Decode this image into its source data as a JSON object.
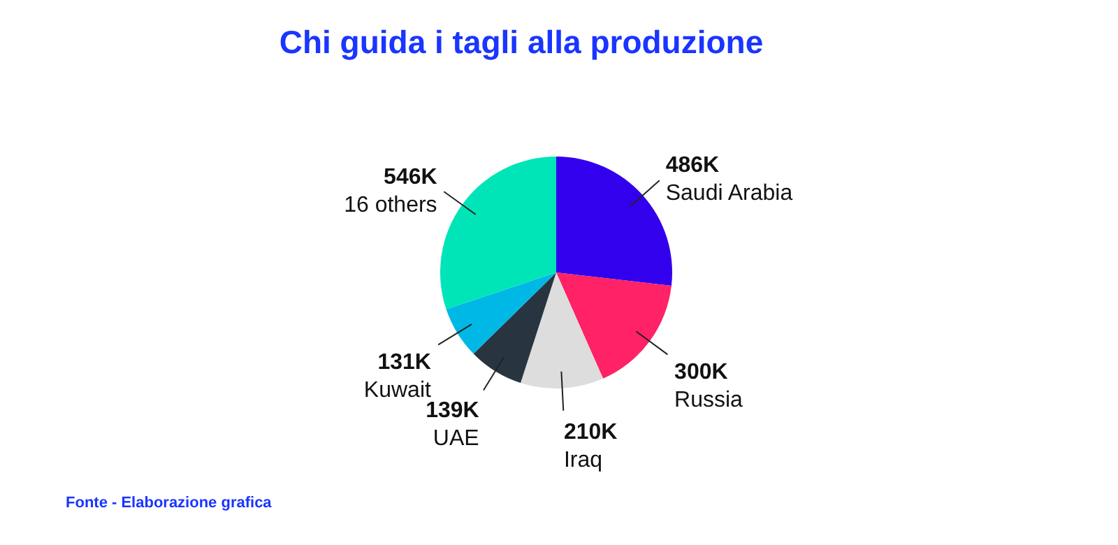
{
  "chart_data": {
    "type": "pie",
    "title": "Chi guida i tagli alla produzione",
    "categories": [
      "Saudi Arabia",
      "Russia",
      "Iraq",
      "UAE",
      "Kuwait",
      "16 others"
    ],
    "values": [
      486,
      300,
      210,
      139,
      131,
      546
    ],
    "value_labels": [
      "486K",
      "300K",
      "210K",
      "139K",
      "131K",
      "546K"
    ],
    "colors": [
      "#3300ee",
      "#ff2266",
      "#dddddd",
      "#283540",
      "#00b8e6",
      "#00e5b8"
    ],
    "annotations": [
      "Fonte - Elaborazione grafica"
    ]
  }
}
